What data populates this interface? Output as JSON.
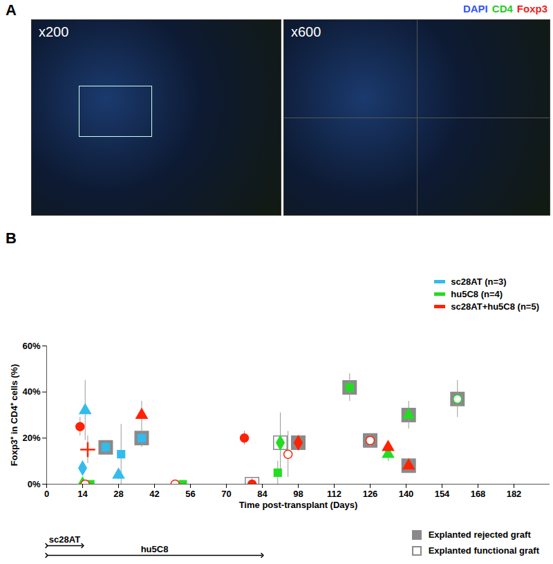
{
  "panel_a": {
    "label": "A",
    "images": [
      {
        "magnification": "x200"
      },
      {
        "magnification": "x600"
      }
    ],
    "stains": [
      {
        "name": "DAPI",
        "color": "#3355ff"
      },
      {
        "name": "CD4",
        "color": "#22cc22"
      },
      {
        "name": "Foxp3",
        "color": "#ee2222"
      }
    ]
  },
  "panel_b": {
    "label": "B"
  },
  "chart_data": {
    "type": "scatter",
    "x_label": "Time post-transplant (Days)",
    "y_label": "Foxp3⁺ in CD4⁺ cells (%)",
    "xlim": [
      0,
      196
    ],
    "xticks": [
      0,
      14,
      28,
      42,
      56,
      70,
      84,
      98,
      112,
      126,
      140,
      154,
      168,
      182
    ],
    "ylim": [
      0,
      60
    ],
    "yticks": [
      {
        "value": 0,
        "label": "0%"
      },
      {
        "value": 20,
        "label": "20%"
      },
      {
        "value": 40,
        "label": "40%"
      },
      {
        "value": 60,
        "label": "60%"
      }
    ],
    "grid": false,
    "legend": "top-right",
    "series": [
      {
        "name": "sc28AT (n=3)",
        "color": "#33bbee",
        "points": [
          {
            "x": 15,
            "y": 32,
            "error": 13,
            "marker": "triangle"
          },
          {
            "x": 14,
            "y": 7,
            "error": 2,
            "marker": "diamond"
          },
          {
            "x": 23,
            "y": 16,
            "error": 3,
            "marker": "square",
            "explant": "Explanted rejected graft"
          },
          {
            "x": 29,
            "y": 13,
            "error": 13,
            "marker": "square"
          },
          {
            "x": 28,
            "y": 4,
            "error": 2,
            "marker": "triangle"
          },
          {
            "x": 37,
            "y": 20,
            "error": 4,
            "marker": "square",
            "explant": "Explanted rejected graft"
          }
        ]
      },
      {
        "name": "hu5C8 (n=4)",
        "color": "#22dd22",
        "points": [
          {
            "x": 14,
            "y": 0,
            "error": 0,
            "marker": "diamond"
          },
          {
            "x": 17,
            "y": 0,
            "error": 0,
            "marker": "square"
          },
          {
            "x": 53,
            "y": 0,
            "error": 0,
            "marker": "square"
          },
          {
            "x": 90,
            "y": 5,
            "error": 5,
            "marker": "square"
          },
          {
            "x": 91,
            "y": 18,
            "error": 13,
            "marker": "diamond",
            "explant": "Explanted functional graft"
          },
          {
            "x": 118,
            "y": 42,
            "error": 6,
            "marker": "square",
            "explant": "Explanted rejected graft"
          },
          {
            "x": 133,
            "y": 13,
            "error": 3,
            "marker": "triangle"
          },
          {
            "x": 141,
            "y": 30,
            "error": 6,
            "marker": "triangle",
            "explant": "Explanted rejected graft"
          },
          {
            "x": 160,
            "y": 37,
            "error": 8,
            "marker": "circle_open",
            "explant": "Explanted rejected graft"
          }
        ]
      },
      {
        "name": "sc28AT+hu5C8 (n=5)",
        "color": "#ff2200",
        "points": [
          {
            "x": 13,
            "y": 25,
            "error": 4,
            "marker": "circle"
          },
          {
            "x": 16,
            "y": 15,
            "error": 6,
            "marker": "plus"
          },
          {
            "x": 15,
            "y": 0,
            "error": 0,
            "marker": "circle_open"
          },
          {
            "x": 37,
            "y": 30,
            "error": 6,
            "marker": "triangle"
          },
          {
            "x": 50,
            "y": 0,
            "error": 0,
            "marker": "circle_open"
          },
          {
            "x": 77,
            "y": 20,
            "error": 3,
            "marker": "circle"
          },
          {
            "x": 80,
            "y": 0,
            "error": 3,
            "marker": "circle",
            "explant": "Explanted functional graft"
          },
          {
            "x": 94,
            "y": 13,
            "error": 10,
            "marker": "circle_open"
          },
          {
            "x": 98,
            "y": 18,
            "error": 2,
            "marker": "diamond",
            "explant": "Explanted rejected graft"
          },
          {
            "x": 126,
            "y": 19,
            "error": 3,
            "marker": "circle_open",
            "explant": "Explanted rejected graft"
          },
          {
            "x": 133,
            "y": 16,
            "error": 2,
            "marker": "triangle"
          },
          {
            "x": 141,
            "y": 8,
            "error": 2,
            "marker": "triangle",
            "explant": "Explanted rejected graft"
          }
        ]
      }
    ],
    "explants": [
      {
        "label": "Explanted rejected graft",
        "marker": "square"
      },
      {
        "label": "Explanted functional graft",
        "marker": "square_open"
      }
    ],
    "treatment_periods": [
      {
        "label": "sc28AT",
        "start": 0,
        "end": 14
      },
      {
        "label": "hu5C8",
        "start": 0,
        "end": 84
      }
    ]
  }
}
